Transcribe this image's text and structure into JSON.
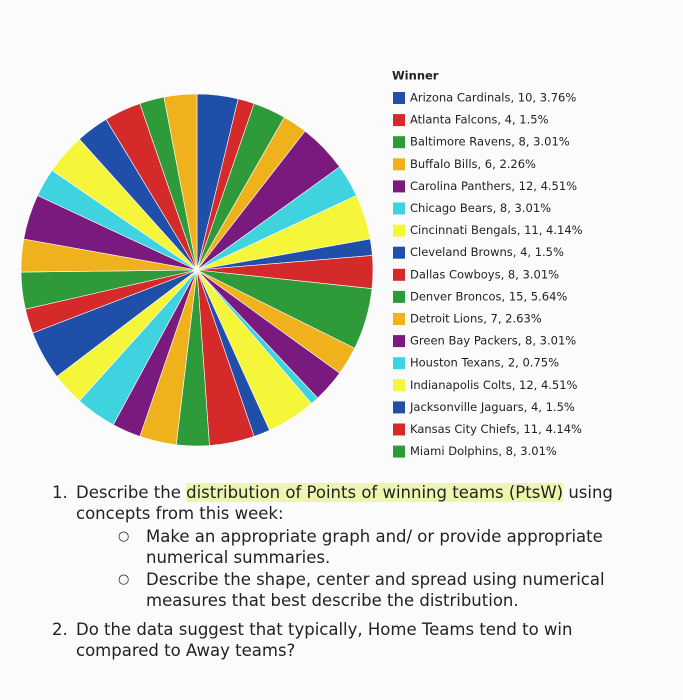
{
  "chart_data": {
    "type": "pie",
    "legend_title": "Winner",
    "categories": [
      "Arizona Cardinals, 10, 3.76%",
      "Atlanta Falcons, 4, 1.5%",
      "Baltimore Ravens, 8, 3.01%",
      "Buffalo Bills, 6, 2.26%",
      "Carolina Panthers, 12, 4.51%",
      "Chicago Bears, 8, 3.01%",
      "Cincinnati Bengals, 11, 4.14%",
      "Cleveland Browns, 4, 1.5%",
      "Dallas Cowboys, 8, 3.01%",
      "Denver Broncos, 15, 5.64%",
      "Detroit Lions, 7, 2.63%",
      "Green Bay Packers, 8, 3.01%",
      "Houston Texans, 2, 0.75%",
      "Indianapolis Colts, 12, 4.51%",
      "Jacksonville Jaguars, 4, 1.5%",
      "Kansas City Chiefs, 11, 4.14%",
      "Miami Dolphins, 8, 3.01%",
      null,
      null,
      null,
      null,
      null,
      null,
      null,
      null,
      null,
      null,
      null,
      null,
      null,
      null,
      null
    ],
    "values": [
      10,
      4,
      8,
      6,
      12,
      8,
      11,
      4,
      8,
      15,
      7,
      8,
      2,
      12,
      4,
      11,
      8,
      9,
      7,
      10,
      8,
      12,
      6,
      9,
      8,
      11,
      7,
      10,
      8,
      9,
      6,
      8
    ],
    "colors": [
      "#1f4fa8",
      "#d42a2a",
      "#2e9a3a",
      "#f0b21c",
      "#7b1a7e",
      "#3fd3e0",
      "#f5f53a"
    ]
  },
  "questions": [
    {
      "number": "1.",
      "text_before": "Describe the ",
      "highlight": "distribution of Points of winning teams (PtsW)",
      "text_after": " using concepts from this week:",
      "bullets": [
        "Make an appropriate graph and/ or provide appropriate numerical summaries.",
        "Describe the shape, center and spread using numerical measures that best describe the distribution."
      ]
    },
    {
      "number": "2.",
      "text": "Do the data suggest that typically, Home Teams tend to win compared to Away teams?"
    }
  ]
}
